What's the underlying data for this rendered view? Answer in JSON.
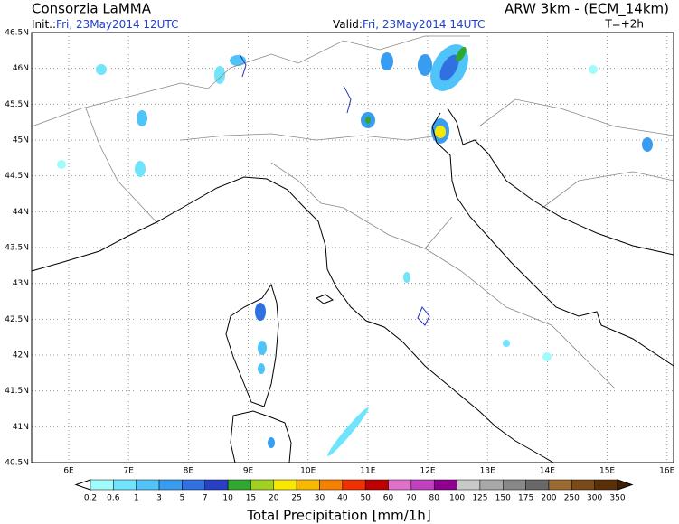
{
  "header": {
    "left_title": "Consorzia LaMMA",
    "right_title": "ARW 3km - (ECM_14km)",
    "init_label": "Init.:",
    "init_time": "Fri, 23May2014 12UTC",
    "valid_label": "Valid:",
    "valid_time": "Fri, 23May2014 14UTC",
    "lead": "T=+2h"
  },
  "map": {
    "lon_range": [
      5.38,
      16.11
    ],
    "lat_range": [
      40.5,
      46.5
    ],
    "lon_ticks": [
      {
        "value": 6,
        "label": "6E"
      },
      {
        "value": 7,
        "label": "7E"
      },
      {
        "value": 8,
        "label": "8E"
      },
      {
        "value": 9,
        "label": "9E"
      },
      {
        "value": 10,
        "label": "10E"
      },
      {
        "value": 11,
        "label": "11E"
      },
      {
        "value": 12,
        "label": "12E"
      },
      {
        "value": 13,
        "label": "13E"
      },
      {
        "value": 14,
        "label": "14E"
      },
      {
        "value": 15,
        "label": "15E"
      },
      {
        "value": 16,
        "label": "16E"
      }
    ],
    "lat_ticks": [
      {
        "value": 40.5,
        "label": "40.5N"
      },
      {
        "value": 41,
        "label": "41N"
      },
      {
        "value": 41.5,
        "label": "41.5N"
      },
      {
        "value": 42,
        "label": "42N"
      },
      {
        "value": 42.5,
        "label": "42.5N"
      },
      {
        "value": 43,
        "label": "43N"
      },
      {
        "value": 43.5,
        "label": "43.5N"
      },
      {
        "value": 44,
        "label": "44N"
      },
      {
        "value": 44.5,
        "label": "44.5N"
      },
      {
        "value": 45,
        "label": "45N"
      },
      {
        "value": 45.5,
        "label": "45.5N"
      },
      {
        "value": 46,
        "label": "46N"
      },
      {
        "value": 46.5,
        "label": "46.5N"
      }
    ]
  },
  "colorbar": {
    "title": "Total Precipitation [mm/1h]",
    "labels": [
      "0.2",
      "0.6",
      "1",
      "3",
      "5",
      "7",
      "10",
      "15",
      "20",
      "25",
      "30",
      "40",
      "50",
      "60",
      "70",
      "80",
      "100",
      "125",
      "150",
      "175",
      "200",
      "250",
      "300",
      "350"
    ],
    "colors": [
      "#ffffff",
      "#a0fcfc",
      "#70e4fc",
      "#50c4f8",
      "#389cf0",
      "#3070e0",
      "#2840c8",
      "#30a830",
      "#a0d020",
      "#f8e800",
      "#f8b800",
      "#f88000",
      "#f03000",
      "#c00000",
      "#e070c8",
      "#c040c0",
      "#900090",
      "#c8c8c8",
      "#a8a8a8",
      "#888888",
      "#686868",
      "#9a6a30",
      "#7a4a18",
      "#5a3008",
      "#402000"
    ]
  }
}
